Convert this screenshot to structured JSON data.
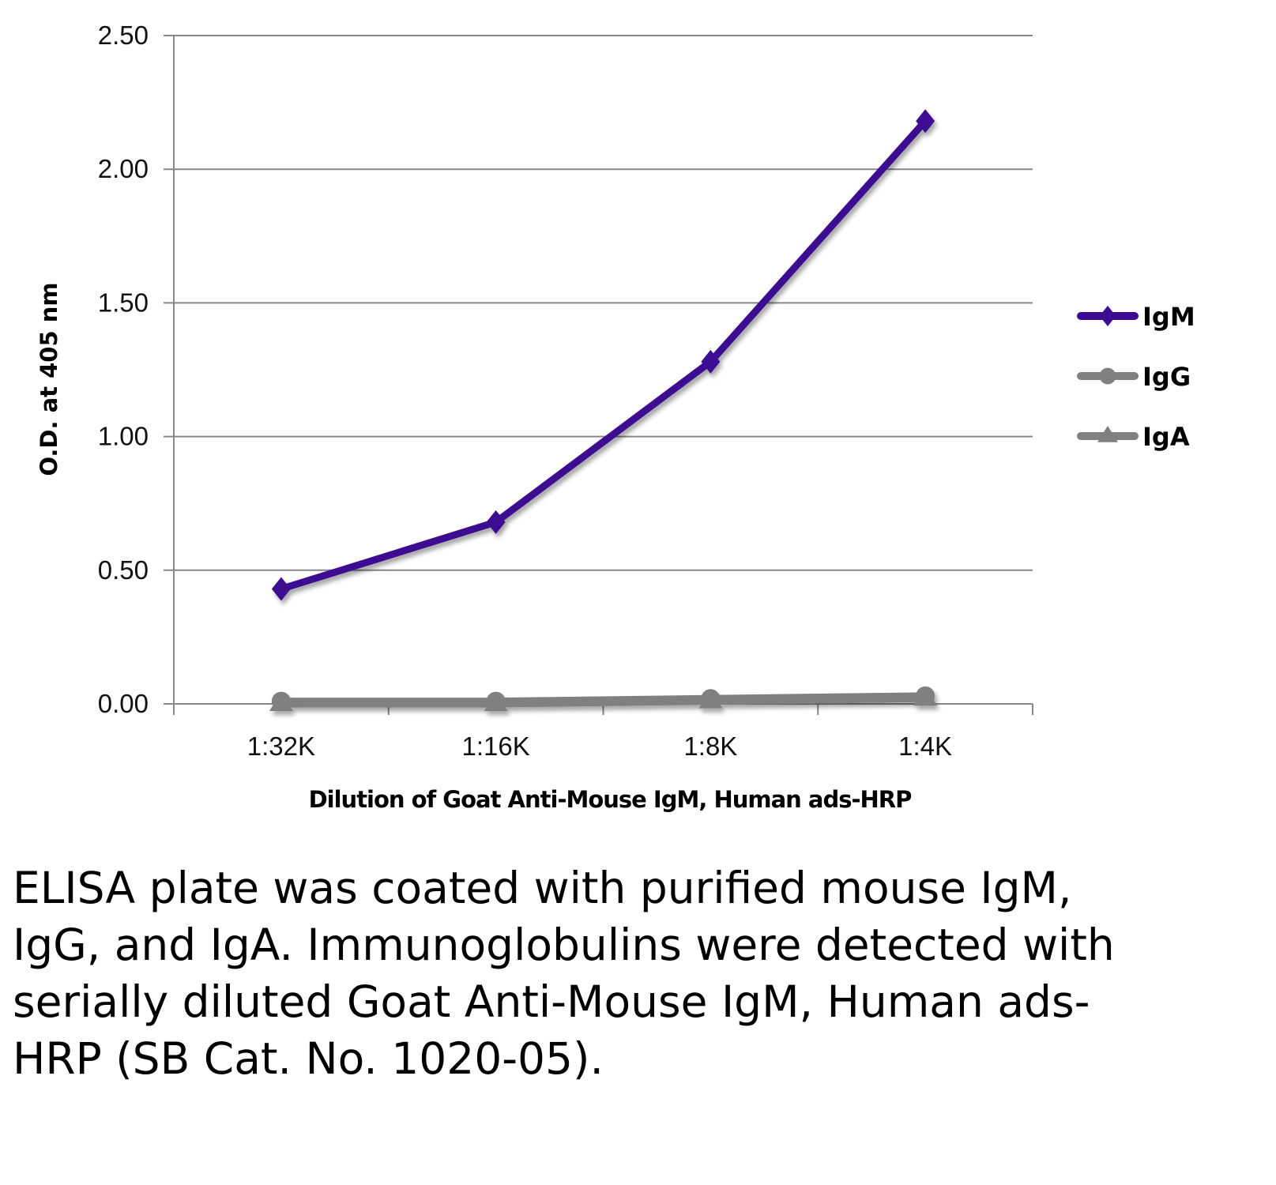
{
  "chart_data": {
    "type": "line",
    "title": "",
    "xlabel": "Dilution of Goat Anti-Mouse IgM, Human ads-HRP",
    "ylabel": "O.D. at 405 nm",
    "categories": [
      "1:32K",
      "1:16K",
      "1:8K",
      "1:4K"
    ],
    "ylim": [
      0,
      2.5
    ],
    "yticks": [
      "0.00",
      "0.50",
      "1.00",
      "1.50",
      "2.00",
      "2.50"
    ],
    "grid": true,
    "legend_position": "right",
    "series": [
      {
        "name": "IgM",
        "values": [
          0.43,
          0.68,
          1.28,
          2.18
        ],
        "color": "#3d0a91",
        "marker": "diamond"
      },
      {
        "name": "IgG",
        "values": [
          0.01,
          0.01,
          0.02,
          0.03
        ],
        "color": "#808080",
        "marker": "circle"
      },
      {
        "name": "IgA",
        "values": [
          0.0,
          0.0,
          0.01,
          0.02
        ],
        "color": "#808080",
        "marker": "triangle"
      }
    ]
  },
  "caption": "ELISA plate was coated with purified mouse IgM, IgG, and IgA.  Immunoglobulins were detected with serially diluted Goat Anti-Mouse IgM, Human ads-HRP (SB Cat. No. 1020-05)."
}
